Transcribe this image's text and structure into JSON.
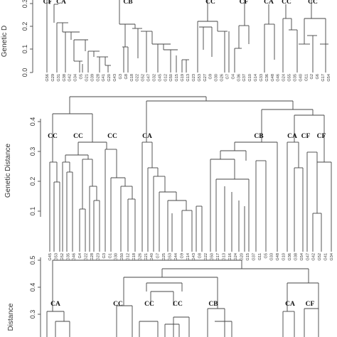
{
  "panels": [
    {
      "id": "panel-a",
      "axis_title": "Genetic D",
      "ticks": [
        "0.0",
        "0.1",
        "0.2",
        "0.3"
      ],
      "tick_values": [
        0.0,
        0.1,
        0.2,
        0.3
      ],
      "ylim": [
        0.0,
        0.32
      ],
      "cluster_labels": [
        "CF",
        "CA",
        "CB",
        "CC",
        "CF",
        "CA",
        "CC",
        "CC"
      ],
      "leaves": [
        "G56",
        "G29",
        "G31",
        "G38",
        "G42",
        "G34",
        "G5",
        "G21",
        "G39",
        "G28",
        "G41",
        "G20",
        "G43",
        "G3",
        "G8",
        "G18",
        "G22",
        "G52",
        "G47",
        "G32",
        "G45",
        "G12",
        "G50",
        "G15",
        "G19",
        "G13",
        "G23",
        "G53",
        "G27",
        "G9",
        "G30",
        "G26",
        "G7",
        "G4",
        "G36",
        "G37",
        "G10",
        "G14",
        "G33",
        "G36",
        "G48",
        "G46",
        "G24",
        "G55",
        "G35",
        "G40",
        "G11",
        "G2",
        "G6",
        "G17",
        "G54"
      ]
    },
    {
      "id": "panel-b",
      "axis_title": "Genetic Distance",
      "ticks": [
        "0.1",
        "0.2",
        "0.3",
        "0.4"
      ],
      "tick_values": [
        0.1,
        0.2,
        0.3,
        0.4
      ],
      "ylim": [
        0.0,
        0.5
      ],
      "cluster_labels": [
        "CC",
        "CC",
        "CC",
        "CA",
        "CB",
        "CA",
        "CF",
        "CF"
      ],
      "leaves": [
        "G45",
        "G53",
        "G52",
        "G35",
        "G46",
        "G4",
        "G22",
        "G28",
        "G23",
        "G3",
        "G1",
        "G30",
        "G50",
        "G12",
        "G18",
        "G26",
        "G21",
        "G40",
        "G7",
        "G25",
        "G53",
        "G44",
        "G9",
        "G14",
        "G43",
        "G8",
        "G22",
        "G50",
        "G17",
        "G13",
        "G16",
        "G24",
        "G20",
        "G15",
        "G37",
        "G11",
        "G5",
        "G33",
        "G48",
        "G10",
        "G36",
        "G38",
        "G54",
        "G47",
        "G42",
        "G52",
        "G41",
        "G34"
      ]
    },
    {
      "id": "panel-c",
      "axis_title": "Distance",
      "ticks": [
        "0.3",
        "0.4",
        "0.5"
      ],
      "tick_values": [
        0.3,
        0.4,
        0.5
      ],
      "ylim": [
        0.27,
        0.52
      ],
      "cluster_labels": [
        "CA",
        "CC",
        "CC",
        "CC",
        "CB",
        "CA",
        "CF"
      ],
      "leaves": []
    }
  ]
}
